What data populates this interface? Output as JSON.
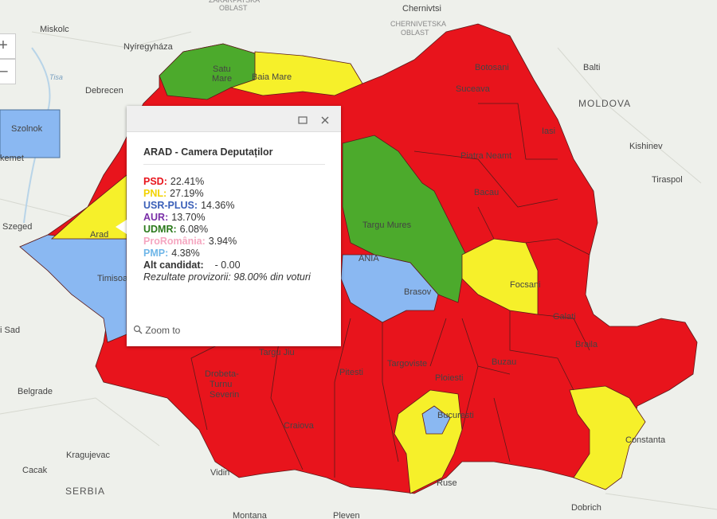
{
  "map_labels": [
    "ZAKARPATSKA",
    "OBLAST",
    "Chernivtsi",
    "CHERNIVETSKA",
    "OBLAST",
    "Miskolc",
    "Nyíregyháza",
    "Tisa",
    "Debrecen",
    "Szolnok",
    "kemet",
    "Szeged",
    "i Sad",
    "Belgrade",
    "Kragujevac",
    "Cacak",
    "SERBIA",
    "Vidin",
    "Montana",
    "Pleven",
    "Ruse",
    "Dobrich",
    "Constanta",
    "Braila",
    "Galati",
    "Focsani",
    "Buzau",
    "Ploiesti",
    "Bucuresti",
    "Targoviste",
    "Pitesti",
    "Craiova",
    "Drobeta-",
    "Turnu",
    "Severin",
    "Targu Jiu",
    "Timisoara",
    "Arad",
    "Satu",
    "Mare",
    "Baia Mare",
    "Suceava",
    "Botosani",
    "Iasi",
    "Piatra Neamt",
    "Bacau",
    "Targu Mures",
    "Brasov",
    "ANIA",
    "Balti",
    "MOLDOVA",
    "Kishinev",
    "Tiraspol"
  ],
  "controls": {
    "zoom_in": "+",
    "zoom_out": "–"
  },
  "popup": {
    "title": "ARAD - Camera Deputaților",
    "results": [
      {
        "party": "PSD:",
        "value": "22.41%",
        "color": "#e8141c"
      },
      {
        "party": "PNL:",
        "value": "27.19%",
        "color": "#f2d200"
      },
      {
        "party": "USR-PLUS:",
        "value": "14.36%",
        "color": "#3a5fb8"
      },
      {
        "party": "AUR:",
        "value": "13.70%",
        "color": "#7a2fa8"
      },
      {
        "party": "UDMR:",
        "value": "6.08%",
        "color": "#2b7a1c"
      },
      {
        "party": "ProRomânia:",
        "value": "3.94%",
        "color": "#f5a6c0"
      },
      {
        "party": "PMP:",
        "value": "4.38%",
        "color": "#6fb6e8"
      }
    ],
    "other": {
      "label": "Alt candidat:",
      "value": "- 0.00"
    },
    "note": "Rezultate provizorii: 98.00% din voturi",
    "zoom": "Zoom to"
  }
}
